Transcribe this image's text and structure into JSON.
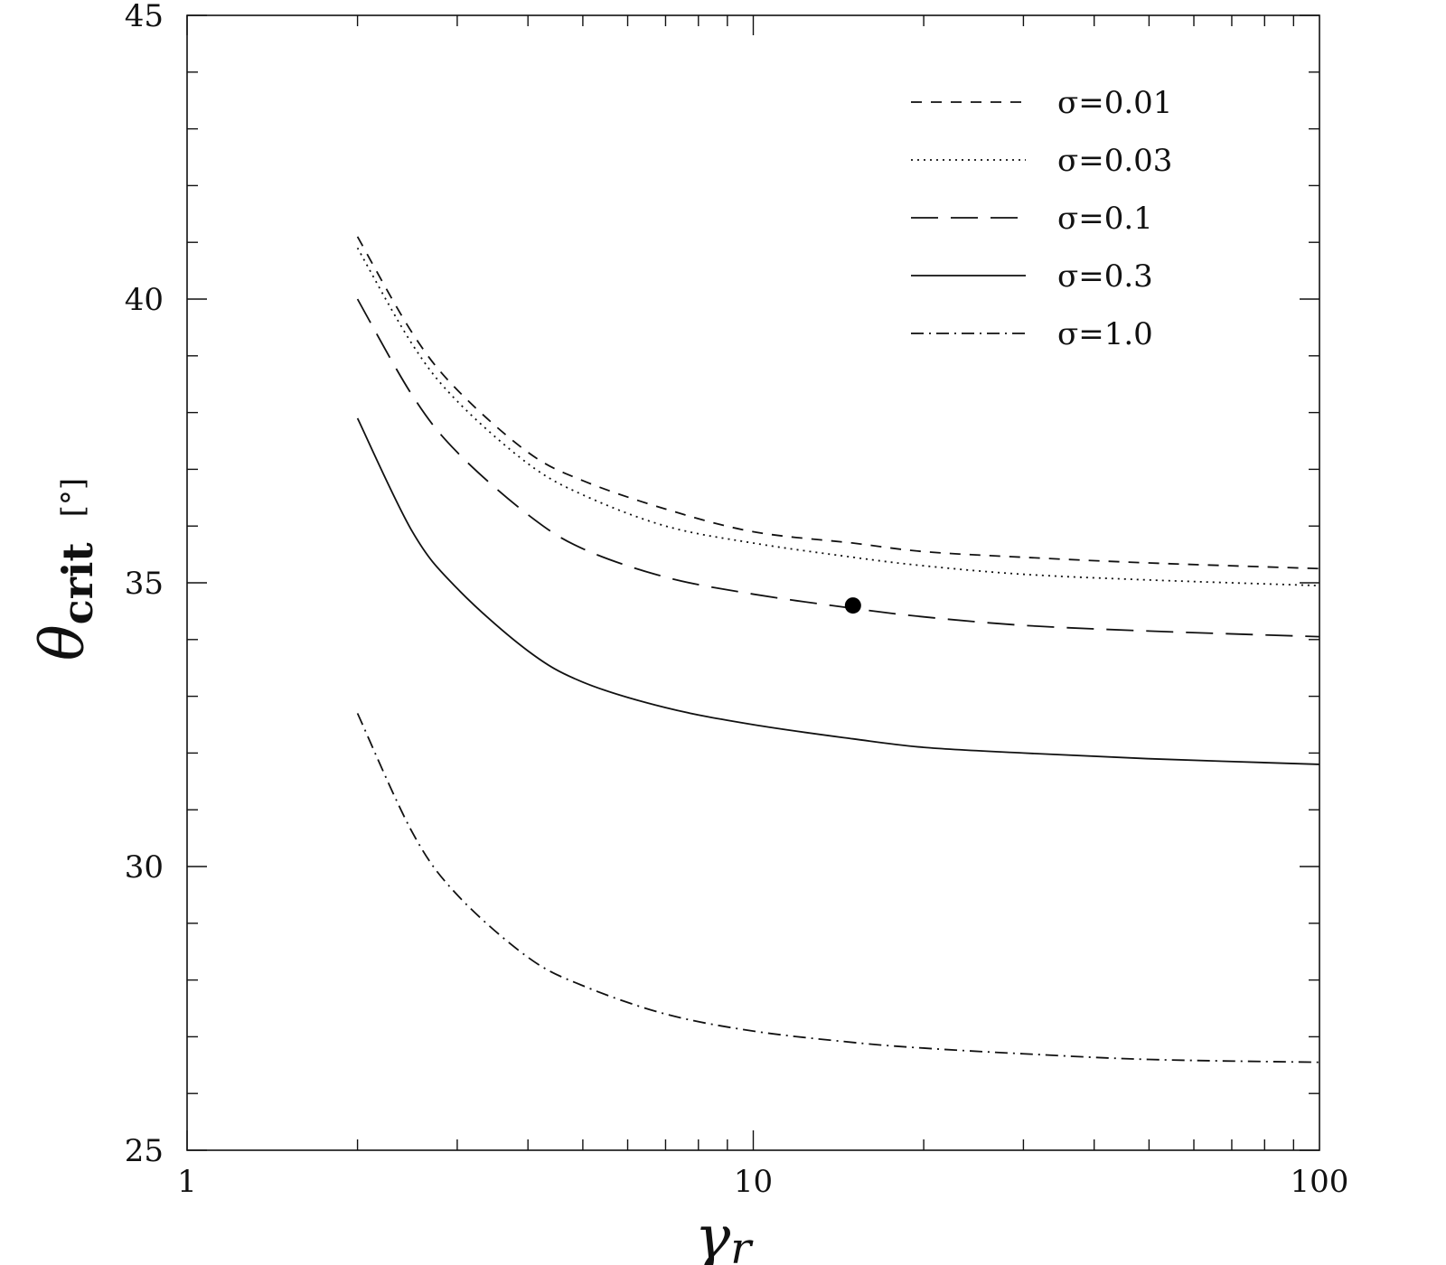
{
  "chart_data": {
    "type": "line",
    "xlabel": {
      "main": "γ",
      "sub": "r"
    },
    "ylabel": {
      "main": "θ",
      "sub": "crit",
      "unit": "[°]"
    },
    "x_scale": "log",
    "xlim": [
      1,
      100
    ],
    "ylim": [
      25,
      45
    ],
    "x_ticks": [
      {
        "value": 1,
        "label": "1"
      },
      {
        "value": 10,
        "label": "10"
      },
      {
        "value": 100,
        "label": "100"
      }
    ],
    "y_ticks": [
      {
        "value": 25,
        "label": "25"
      },
      {
        "value": 30,
        "label": "30"
      },
      {
        "value": 35,
        "label": "35"
      },
      {
        "value": 40,
        "label": "40"
      },
      {
        "value": 45,
        "label": "45"
      }
    ],
    "grid": false,
    "legend_position": "top-right",
    "x": [
      2,
      2.5,
      3,
      4,
      5,
      7,
      10,
      15,
      20,
      30,
      50,
      100
    ],
    "series": [
      {
        "name": "σ=0.01",
        "style": "dashed",
        "values": [
          41.1,
          39.4,
          38.4,
          37.3,
          36.8,
          36.3,
          35.9,
          35.7,
          35.55,
          35.45,
          35.35,
          35.25
        ]
      },
      {
        "name": "σ=0.03",
        "style": "dotted",
        "values": [
          40.9,
          39.2,
          38.2,
          37.1,
          36.55,
          36.0,
          35.7,
          35.45,
          35.3,
          35.15,
          35.05,
          34.95
        ]
      },
      {
        "name": "σ=0.1",
        "style": "longdash",
        "values": [
          40.0,
          38.3,
          37.3,
          36.2,
          35.6,
          35.1,
          34.8,
          34.55,
          34.4,
          34.25,
          34.15,
          34.05
        ]
      },
      {
        "name": "σ=0.3",
        "style": "solid",
        "values": [
          37.9,
          35.9,
          34.9,
          33.8,
          33.25,
          32.8,
          32.5,
          32.25,
          32.1,
          32.0,
          31.9,
          31.8
        ]
      },
      {
        "name": "σ=1.0",
        "style": "dashdot",
        "values": [
          32.7,
          30.6,
          29.5,
          28.4,
          27.9,
          27.4,
          27.1,
          26.9,
          26.8,
          26.7,
          26.6,
          26.55
        ]
      }
    ],
    "marker": {
      "x": 15,
      "y": 34.6
    }
  }
}
